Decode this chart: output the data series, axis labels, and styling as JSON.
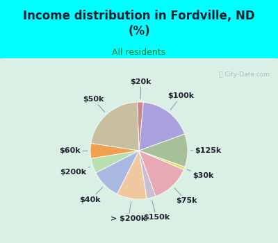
{
  "title": "Income distribution in Fordville, ND\n(%)",
  "subtitle": "All residents",
  "background_color": "#00ffff",
  "chart_bg_from": "#d0ede0",
  "chart_bg_to": "#e8f8f0",
  "watermark": "ⓘ City-Data.com",
  "slices": [
    {
      "label": "$20k",
      "value": 2,
      "color": "#cc8888"
    },
    {
      "label": "$100k",
      "value": 18,
      "color": "#aaa0dd"
    },
    {
      "label": "$125k",
      "value": 11,
      "color": "#a8c09a"
    },
    {
      "label": "$30k",
      "value": 1,
      "color": "#e0e060"
    },
    {
      "label": "$75k",
      "value": 13,
      "color": "#e8a8b4"
    },
    {
      "label": "$150k",
      "value": 3,
      "color": "#c8c0d0"
    },
    {
      "label": "> $200k",
      "value": 10,
      "color": "#f0c8a0"
    },
    {
      "label": "$40k",
      "value": 10,
      "color": "#a8b8e0"
    },
    {
      "label": "$200k",
      "value": 5,
      "color": "#b8e0b0"
    },
    {
      "label": "$60k",
      "value": 5,
      "color": "#f0a050"
    },
    {
      "label": "$50k",
      "value": 22,
      "color": "#c8bea0"
    }
  ],
  "title_color": "#222233",
  "subtitle_color": "#2a7a2a",
  "label_color": "#222233",
  "title_fontsize": 12,
  "subtitle_fontsize": 9,
  "label_fontsize": 8
}
